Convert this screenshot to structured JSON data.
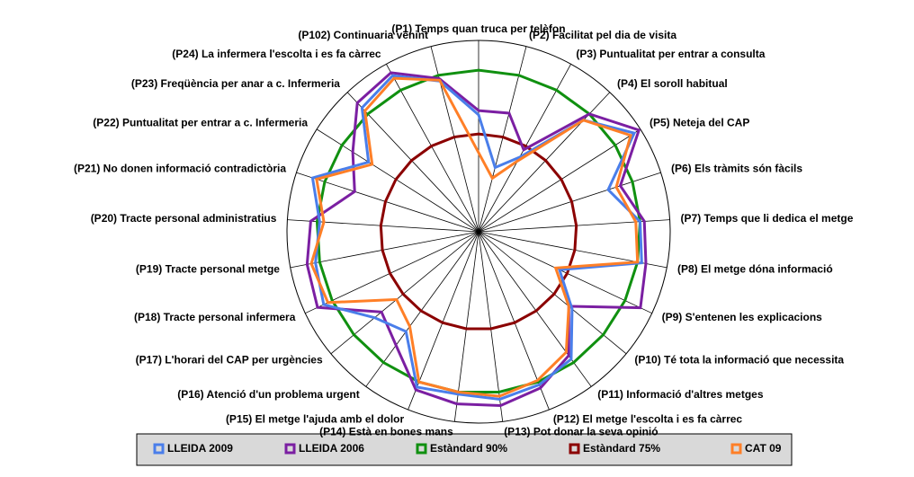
{
  "chart_data": {
    "type": "radar",
    "categories": [
      "(P1) Temps quan truca per telèfon",
      "(P2) Facilitat pel dia de visita",
      "(P3) Puntualitat per entrar a consulta",
      "(P4) El soroll habitual",
      "(P5) Neteja del CAP",
      "(P6) Els tràmits són fàcils",
      "(P7) Temps que li dedica el metge",
      "(P8) El metge dóna informació",
      "(P9) S'entenen les explicacions",
      "(P10) Té tota la informació que necessita",
      "(P11) Informació d'altres metges",
      "(P12) El metge l'escolta i es fa càrrec",
      "(P13) Pot donar la seva opinió",
      "(P14) Està en bones mans",
      "(P15) El metge l'ajuda amb el dolor",
      "(P16) Atenció d'un problema urgent",
      "(P17) L'horari del CAP per urgències",
      "(P18) Tracte personal infermera",
      "(P19) Tracte personal metge",
      "(P20) Tracte personal administratius",
      "(P21) No donen informació contradictòria",
      "(P22) Puntualitat per entrar a c. Infermeria",
      "(P23) Freqüència per anar a c. Infermeria",
      "(P24) La infermera l'escolta i es fa càrrec",
      "(P102) Continuaria venint"
    ],
    "rlim": [
      52,
      97
    ],
    "series": [
      {
        "name": "LLEIDA 2009",
        "color": "#4a7eea",
        "values": [
          79.5,
          67.6,
          72,
          88,
          95.3,
          84,
          90,
          91,
          73,
          80.5,
          89,
          90.7,
          91.7,
          90.5,
          91.3,
          81,
          83.7,
          92.2,
          91,
          89.4,
          93,
          82.6,
          92,
          93.9,
          88.6
        ]
      },
      {
        "name": "LLEIDA 2006",
        "color": "#7b1fa2",
        "values": [
          80.5,
          80.8,
          74,
          90,
          96.6,
          87,
          91,
          92,
          94,
          79.5,
          88,
          91.5,
          93.2,
          92.8,
          92,
          85,
          81.6,
          93.8,
          93,
          91.5,
          82.6,
          87,
          93.6,
          94.7,
          89.2
        ]
      },
      {
        "name": "Estàndard 90%",
        "color": "#109010",
        "values": [
          90,
          90,
          90,
          90,
          90,
          90,
          90,
          90,
          90,
          90,
          90,
          90,
          90,
          90,
          90,
          90,
          90,
          90,
          90,
          90,
          90,
          90,
          90,
          90,
          90
        ]
      },
      {
        "name": "Estàndard 75%",
        "color": "#8b0000",
        "values": [
          75,
          75,
          75,
          75,
          75,
          75,
          75,
          75,
          75,
          75,
          75,
          75,
          75,
          75,
          75,
          75,
          75,
          75,
          75,
          75,
          75,
          75,
          75,
          75,
          75
        ]
      },
      {
        "name": "CAT 09",
        "color": "#ff7f27",
        "values": [
          70.6,
          65,
          71,
          88,
          94.3,
          86,
          89,
          90,
          72,
          79.5,
          87,
          89.6,
          91,
          90,
          90,
          79.5,
          77,
          91.1,
          92,
          88.4,
          92,
          81.6,
          91,
          93.2,
          88.8
        ]
      }
    ]
  }
}
